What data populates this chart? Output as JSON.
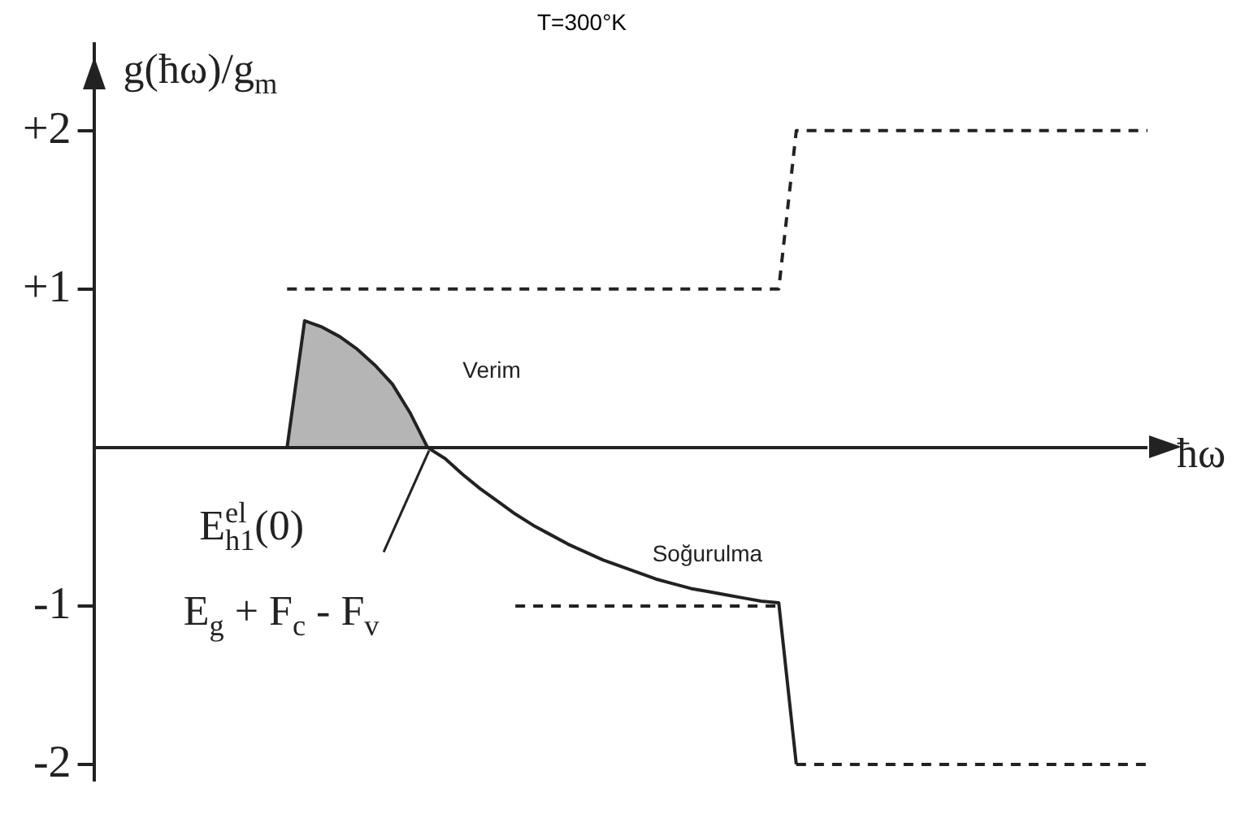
{
  "chart_data": {
    "type": "line",
    "title": "T=300°K",
    "xlabel": "ħω",
    "ylabel": "g(ħω)/g$_{m}$",
    "categories": [
      null,
      null,
      null,
      null,
      null,
      null,
      null,
      null,
      null,
      null,
      null,
      null,
      null,
      null,
      null,
      null,
      null,
      null,
      null,
      null,
      null,
      null,
      null,
      null,
      null,
      null,
      null,
      null,
      null,
      null,
      null,
      null,
      null,
      null,
      null,
      null,
      null,
      null,
      null,
      null,
      null,
      null,
      null,
      null,
      null,
      null,
      null,
      null,
      null,
      null,
      null,
      null,
      null,
      null,
      null,
      null,
      null,
      null,
      null,
      null,
      null
    ],
    "ylim": [
      -2.1,
      2.55
    ],
    "yticks": [
      {
        "value": 2,
        "label": "+2"
      },
      {
        "value": 1,
        "label": "+1"
      },
      {
        "value": -1,
        "label": "-1"
      },
      {
        "value": -2,
        "label": "-2"
      }
    ],
    "tick_labels": "y",
    "legend": false,
    "grid": false,
    "marker": "none",
    "series": [
      {
        "type": "area",
        "color": "#222222",
        "line_style": "solid",
        "values": [
          null,
          null,
          null,
          null,
          null,
          null,
          null,
          null,
          null,
          null,
          null,
          0,
          0.8,
          0.76,
          0.7,
          0.62,
          0.52,
          0.4,
          0.22,
          0,
          null,
          null,
          null,
          null,
          null,
          null,
          null,
          null,
          null,
          null,
          null,
          null,
          null,
          null,
          null,
          null,
          null,
          null,
          null,
          null,
          null,
          null,
          null,
          null,
          null,
          null,
          null,
          null,
          null,
          null,
          null,
          null,
          null,
          null,
          null,
          null,
          null,
          null,
          null,
          null,
          null
        ]
      },
      {
        "color": "#222222",
        "line_style": "solid",
        "values": [
          null,
          null,
          null,
          null,
          null,
          null,
          null,
          null,
          null,
          null,
          null,
          null,
          null,
          null,
          null,
          null,
          null,
          null,
          null,
          0,
          -0.07,
          -0.17,
          -0.26,
          -0.34,
          -0.42,
          -0.49,
          -0.55,
          -0.61,
          -0.66,
          -0.71,
          -0.75,
          -0.79,
          -0.83,
          -0.86,
          -0.89,
          -0.91,
          -0.93,
          -0.95,
          -0.97,
          -0.98,
          -2,
          null,
          null,
          null,
          null,
          null,
          null,
          null,
          null,
          null,
          null,
          null,
          null,
          null,
          null,
          null,
          null,
          null,
          null,
          null,
          null
        ]
      },
      {
        "color": "#222222",
        "line_style": "dashed",
        "values": [
          null,
          null,
          null,
          null,
          null,
          null,
          null,
          null,
          null,
          null,
          null,
          1,
          1,
          1,
          1,
          1,
          1,
          1,
          1,
          1,
          1,
          1,
          1,
          1,
          1,
          1,
          1,
          1,
          1,
          1,
          1,
          1,
          1,
          1,
          1,
          1,
          1,
          1,
          1,
          1,
          2,
          2,
          2,
          2,
          2,
          2,
          2,
          2,
          2,
          2,
          2,
          2,
          2,
          2,
          2,
          2,
          2,
          2,
          2,
          2,
          2
        ]
      },
      {
        "color": "#222222",
        "line_style": "dashed",
        "values": [
          null,
          null,
          null,
          null,
          null,
          null,
          null,
          null,
          null,
          null,
          null,
          null,
          null,
          null,
          null,
          null,
          null,
          null,
          null,
          null,
          null,
          null,
          null,
          null,
          -1,
          -1,
          -1,
          -1,
          -1,
          -1,
          -1,
          -1,
          -1,
          -1,
          -1,
          -1,
          -1,
          -1,
          -1,
          -1,
          null,
          null,
          null,
          null,
          null,
          null,
          null,
          null,
          null,
          null,
          null,
          null,
          null,
          null,
          null,
          null,
          null,
          null,
          null,
          null,
          null
        ]
      },
      {
        "color": "#222222",
        "line_style": "dashed",
        "values": [
          null,
          null,
          null,
          null,
          null,
          null,
          null,
          null,
          null,
          null,
          null,
          null,
          null,
          null,
          null,
          null,
          null,
          null,
          null,
          null,
          null,
          null,
          null,
          null,
          null,
          null,
          null,
          null,
          null,
          null,
          null,
          null,
          null,
          null,
          null,
          null,
          null,
          null,
          null,
          null,
          -2,
          -2,
          -2,
          -2,
          -2,
          -2,
          -2,
          -2,
          -2,
          -2,
          -2,
          -2,
          -2,
          -2,
          -2,
          -2,
          -2,
          -2,
          -2,
          -2,
          -2
        ]
      }
    ],
    "annotations": [
      "Verim",
      "Soğurulma",
      "E$_{h1}$$^{el}$(0)",
      "E$_{g}$ + F$_{c}$ - F$_{v}$"
    ]
  }
}
